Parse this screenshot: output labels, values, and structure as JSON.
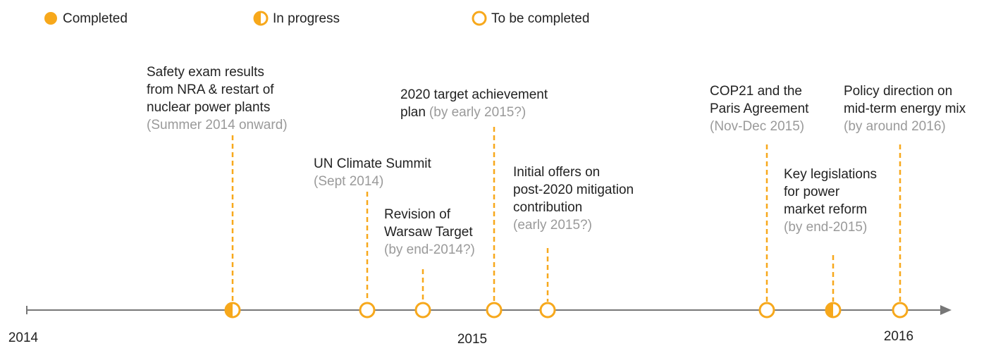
{
  "legend": [
    {
      "label": "Completed",
      "status": "full"
    },
    {
      "label": "In progress",
      "status": "half"
    },
    {
      "label": "To be completed",
      "status": "empty"
    }
  ],
  "color": "#f7a81b",
  "axis_labels": [
    "2014",
    "2015",
    "2016"
  ],
  "events": [
    {
      "lines": [
        "Safety exam results",
        "from NRA & restart of",
        "nuclear power plants"
      ],
      "date": "(Summer 2014 onward)",
      "legend_item": 1
    },
    {
      "lines": [
        "UN Climate Summit"
      ],
      "date": "(Sept 2014)",
      "legend_item": 2
    },
    {
      "lines": [
        "Revision of",
        "Warsaw Target"
      ],
      "date": "(by end-2014?)",
      "legend_item": 2
    },
    {
      "lines": [
        "2020 target achievement",
        "plan"
      ],
      "date": "(by early 2015?)",
      "date_inline": true,
      "legend_item": 2
    },
    {
      "lines": [
        "Initial offers on",
        "post-2020 mitigation",
        "contribution"
      ],
      "date": "(early 2015?)",
      "legend_item": 2
    },
    {
      "lines": [
        "COP21 and the",
        "Paris Agreement"
      ],
      "date": "(Nov-Dec 2015)",
      "legend_item": 2
    },
    {
      "lines": [
        "Key legislations",
        "for power",
        "market reform"
      ],
      "date": "(by end-2015)",
      "legend_item": 1
    },
    {
      "lines": [
        "Policy direction on",
        "mid-term energy mix"
      ],
      "date": "(by around 2016)",
      "legend_item": 2
    }
  ]
}
